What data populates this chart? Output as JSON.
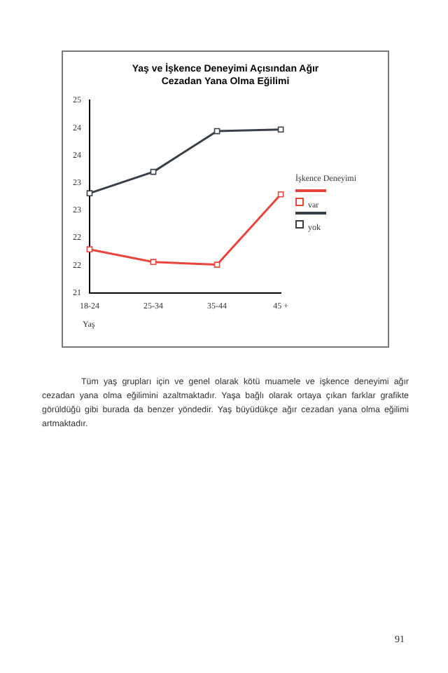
{
  "chart_data": {
    "type": "line",
    "title": "Yaş ve İşkence Deneyimi Açısından Ağır Cezadan Yana Olma Eğilimi",
    "xlabel": "Yaş",
    "legend_title": "İşkence Deneyimi",
    "categories": [
      "18-24",
      "25-34",
      "35-44",
      "45 +"
    ],
    "series": [
      {
        "name": "var",
        "color": "#e8453c",
        "values": [
          22.29,
          22.06,
          22.01,
          23.29
        ]
      },
      {
        "name": "yok",
        "color": "#3a4048",
        "values": [
          23.31,
          23.7,
          24.44,
          24.47
        ]
      }
    ],
    "ylim": [
      21.5,
      25
    ],
    "yticks": [
      {
        "value": 21.5,
        "label": "21"
      },
      {
        "value": 22,
        "label": "22"
      },
      {
        "value": 22.5,
        "label": "22"
      },
      {
        "value": 23,
        "label": "23"
      },
      {
        "value": 23.5,
        "label": "23"
      },
      {
        "value": 24,
        "label": "24"
      },
      {
        "value": 24.5,
        "label": "24"
      },
      {
        "value": 25,
        "label": "25"
      }
    ],
    "grid": false,
    "legend": "right",
    "marker": "square",
    "line_style": "solid",
    "annotations": [
      "Tüm yaş grupları için ve genel olarak kötü muamele ve işkence deneyimi ağır cezadan yana olma eğilimini azaltmaktadır. Yaşa bağlı olarak ortaya çıkan farklar grafikte görüldüğü gibi burada da benzer yöndedir. Yaş büyüdükçe ağır cezadan yana olma eğilimi artmaktadır.",
      "91"
    ]
  }
}
